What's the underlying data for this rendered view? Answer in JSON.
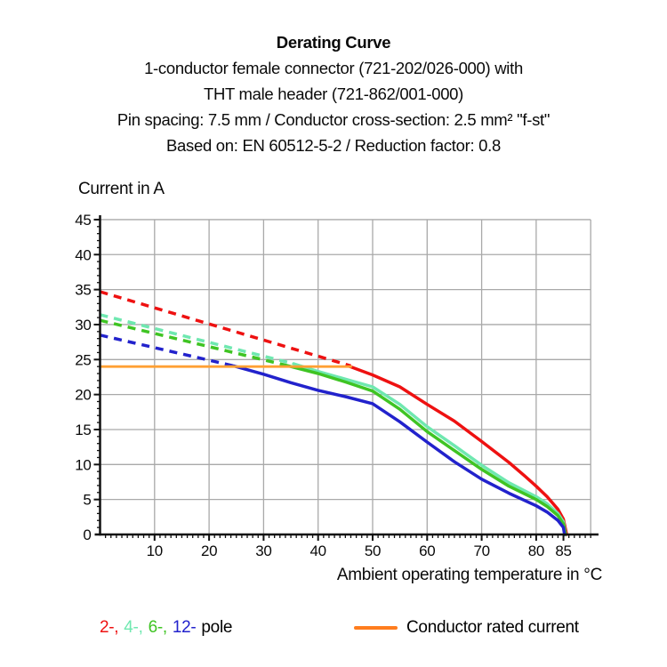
{
  "header": {
    "title": "Derating Curve",
    "subtitle_lines": [
      "1-conductor female connector (721-202/026-000) with",
      "THT male header (721-862/001-000)",
      "Pin spacing: 7.5 mm / Conductor cross-section: 2.5 mm² \"f-st\"",
      "Based on: EN 60512-5-2 / Reduction factor: 0.8"
    ]
  },
  "chart_data": {
    "type": "line",
    "title": "Derating Curve",
    "xlabel": "Ambient operating temperature in °C",
    "ylabel": "Current in A",
    "xlim": [
      0,
      90
    ],
    "ylim": [
      0,
      45
    ],
    "x_major_ticks": [
      10,
      20,
      30,
      40,
      50,
      60,
      70,
      80,
      85
    ],
    "y_major_ticks": [
      0,
      5,
      10,
      15,
      20,
      25,
      30,
      35,
      40,
      45
    ],
    "grid": {
      "x_step": 10,
      "y_step": 5,
      "on": true
    },
    "legend_position": "bottom",
    "series": [
      {
        "name": "2-pole reduced (dashed)",
        "color": "#ee1111",
        "style": "dashed",
        "points": [
          [
            0,
            34.7
          ],
          [
            46,
            24.1
          ]
        ]
      },
      {
        "name": "4-pole reduced (dashed)",
        "color": "#6fe8b0",
        "style": "dashed",
        "points": [
          [
            0,
            31.4
          ],
          [
            35.5,
            24.4
          ]
        ]
      },
      {
        "name": "6-pole reduced (dashed)",
        "color": "#3fc423",
        "style": "dashed",
        "points": [
          [
            0,
            30.6
          ],
          [
            33.5,
            24.3
          ]
        ]
      },
      {
        "name": "12-pole reduced (dashed)",
        "color": "#2222cc",
        "style": "dashed",
        "points": [
          [
            0,
            28.5
          ],
          [
            24.5,
            24.1
          ]
        ]
      },
      {
        "name": "2-pole",
        "color": "#ee1111",
        "style": "solid",
        "points": [
          [
            45.5,
            24.1
          ],
          [
            50,
            22.8
          ],
          [
            55,
            21.1
          ],
          [
            60,
            18.6
          ],
          [
            65,
            16.2
          ],
          [
            70,
            13.3
          ],
          [
            75,
            10.3
          ],
          [
            78,
            8.3
          ],
          [
            80,
            6.9
          ],
          [
            82,
            5.4
          ],
          [
            84,
            3.6
          ],
          [
            85,
            2.2
          ],
          [
            85.6,
            0
          ]
        ]
      },
      {
        "name": "4-pole",
        "color": "#6fe8b0",
        "style": "solid",
        "points": [
          [
            35.5,
            24.4
          ],
          [
            40,
            23.3
          ],
          [
            45,
            22.2
          ],
          [
            50,
            21.1
          ],
          [
            55,
            18.6
          ],
          [
            60,
            15.4
          ],
          [
            65,
            12.7
          ],
          [
            70,
            9.9
          ],
          [
            75,
            7.4
          ],
          [
            80,
            5.4
          ],
          [
            82,
            4.4
          ],
          [
            84,
            3.0
          ],
          [
            85,
            1.8
          ],
          [
            85.4,
            0
          ]
        ]
      },
      {
        "name": "6-pole",
        "color": "#3fc423",
        "style": "solid",
        "points": [
          [
            33.5,
            24.3
          ],
          [
            40,
            23.0
          ],
          [
            45,
            21.8
          ],
          [
            50,
            20.5
          ],
          [
            55,
            17.9
          ],
          [
            60,
            14.7
          ],
          [
            65,
            12.0
          ],
          [
            70,
            9.3
          ],
          [
            75,
            6.9
          ],
          [
            80,
            5.0
          ],
          [
            82,
            4.0
          ],
          [
            84,
            2.7
          ],
          [
            85,
            1.5
          ],
          [
            85.4,
            0
          ]
        ]
      },
      {
        "name": "12-pole",
        "color": "#2222cc",
        "style": "solid",
        "points": [
          [
            24.5,
            24.1
          ],
          [
            30,
            22.9
          ],
          [
            35,
            21.7
          ],
          [
            40,
            20.6
          ],
          [
            45,
            19.7
          ],
          [
            50,
            18.7
          ],
          [
            55,
            16.1
          ],
          [
            60,
            13.2
          ],
          [
            65,
            10.4
          ],
          [
            70,
            7.9
          ],
          [
            75,
            5.9
          ],
          [
            80,
            4.1
          ],
          [
            82,
            3.2
          ],
          [
            84,
            2.0
          ],
          [
            85,
            1.0
          ],
          [
            85.2,
            0
          ]
        ]
      },
      {
        "name": "Conductor rated current",
        "color": "#ffa033",
        "style": "solid",
        "width": 2.8,
        "points": [
          [
            0,
            24
          ],
          [
            46,
            24
          ]
        ]
      }
    ]
  },
  "legend": {
    "poles": [
      {
        "label": "2-,",
        "color": "#ee1111"
      },
      {
        "label": "4-,",
        "color": "#6fe8b0"
      },
      {
        "label": "6-,",
        "color": "#3fc423"
      },
      {
        "label": "12-",
        "color": "#2222cc"
      }
    ],
    "poles_suffix": "pole",
    "rated": {
      "label": "Conductor rated current",
      "swatch_color": "#ff7d1e"
    }
  },
  "colors": {
    "grid": "#a9a9a9",
    "axis": "#111111"
  }
}
